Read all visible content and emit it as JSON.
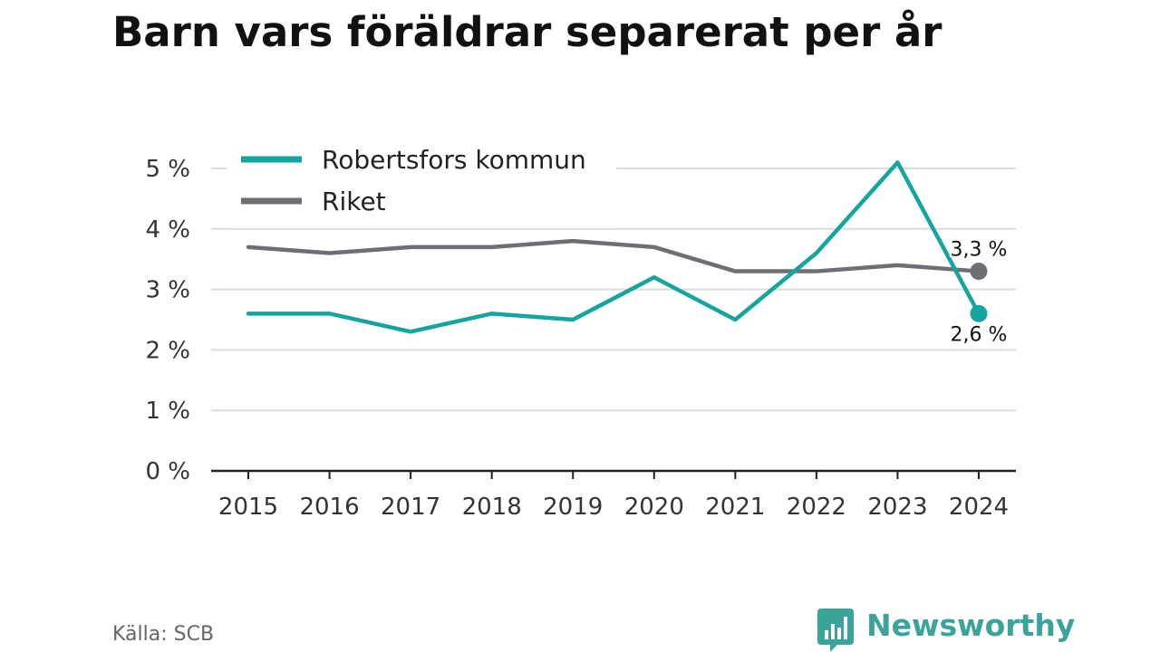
{
  "chart_data": {
    "type": "line",
    "title": "Barn vars föräldrar separerat per år",
    "xlabel": "",
    "ylabel": "",
    "x": [
      "2015",
      "2016",
      "2017",
      "2018",
      "2019",
      "2020",
      "2021",
      "2022",
      "2023",
      "2024"
    ],
    "ylim": [
      0,
      5
    ],
    "yticks": [
      0,
      1,
      2,
      3,
      4,
      5
    ],
    "ytick_labels": [
      "0 %",
      "1 %",
      "2 %",
      "3 %",
      "4 %",
      "5 %"
    ],
    "grid": true,
    "legend_position": "top-left",
    "series": [
      {
        "name": "Robertsfors kommun",
        "color": "#14a59e",
        "values": [
          2.6,
          2.6,
          2.3,
          2.6,
          2.5,
          3.2,
          2.5,
          3.6,
          5.1,
          2.6
        ],
        "end_label": "2,6 %"
      },
      {
        "name": "Riket",
        "color": "#6f6e75",
        "values": [
          3.7,
          3.6,
          3.7,
          3.7,
          3.8,
          3.7,
          3.3,
          3.3,
          3.4,
          3.3
        ],
        "end_label": "3,3 %"
      }
    ]
  },
  "footer": {
    "source": "Källa: SCB",
    "brand": "Newsworthy",
    "brand_color": "#3aa39a"
  },
  "icons": {
    "brand_logo": "bar-chart-speech-bubble-icon"
  }
}
